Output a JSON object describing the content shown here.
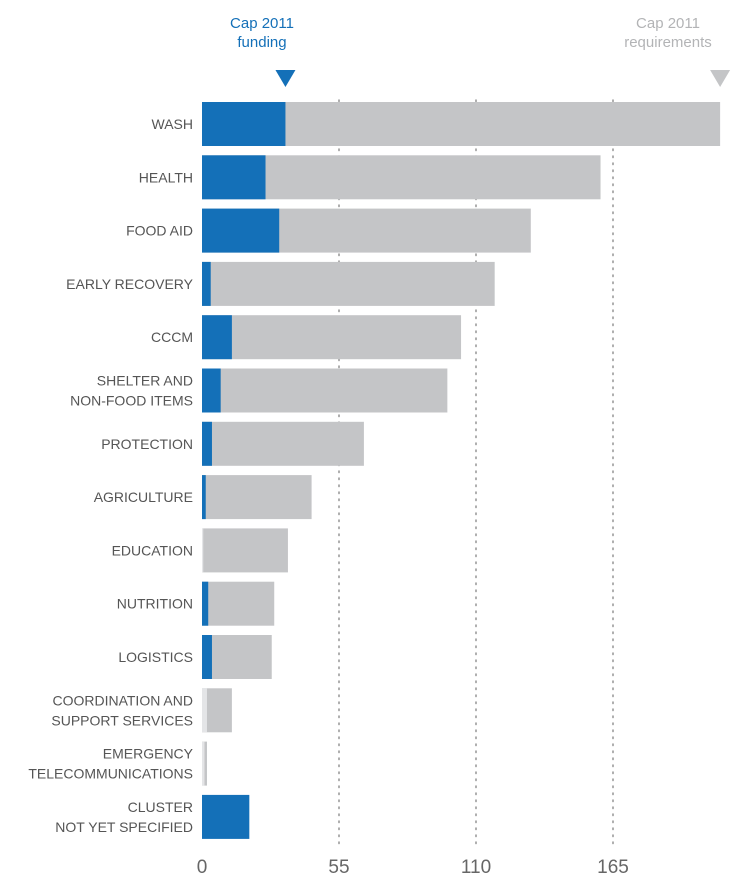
{
  "chart_data": {
    "type": "bar",
    "orientation": "horizontal",
    "stacked": "overlay",
    "categories": [
      [
        "WASH"
      ],
      [
        "HEALTH"
      ],
      [
        "FOOD AID"
      ],
      [
        "EARLY RECOVERY"
      ],
      [
        "CCCM"
      ],
      [
        "SHELTER AND",
        "NON-FOOD ITEMS"
      ],
      [
        "PROTECTION"
      ],
      [
        "AGRICULTURE"
      ],
      [
        "EDUCATION"
      ],
      [
        "NUTRITION"
      ],
      [
        "LOGISTICS"
      ],
      [
        "COORDINATION AND",
        "SUPPORT SERVICES"
      ],
      [
        "EMERGENCY",
        "TELECOMMUNICATIONS"
      ],
      [
        "CLUSTER",
        "NOT YET SPECIFIED"
      ]
    ],
    "series": [
      {
        "name": "Cap 2011 requirements",
        "color": "#c4c5c7",
        "values": [
          208,
          160,
          132,
          117.5,
          104,
          98.5,
          65,
          44,
          34.5,
          29,
          28,
          12,
          2,
          0
        ]
      },
      {
        "name": "Cap 2011 funding",
        "color": "#1470b8",
        "values": [
          33.5,
          25.5,
          31,
          3.5,
          12,
          7.5,
          4,
          1.5,
          0.5,
          2.5,
          4,
          2,
          1,
          19
        ]
      }
    ],
    "special_colors": {
      "faded": "#e4e5e7"
    },
    "x_ticks": [
      0,
      55,
      110,
      165
    ],
    "xlim": [
      0,
      208
    ],
    "grid": "vertical dotted at 55, 110, 165",
    "legend": {
      "funding_lines": [
        "Cap 2011",
        "funding"
      ],
      "requirements_lines": [
        "Cap 2011",
        "requirements"
      ],
      "funding_color": "#1470b8",
      "requirements_color": "#b3b4b6"
    }
  }
}
